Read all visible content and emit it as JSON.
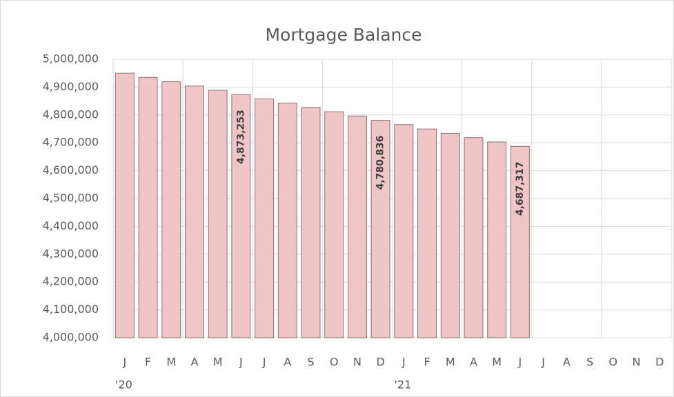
{
  "chart_data": {
    "type": "bar",
    "title": "Mortgage Balance",
    "categories": [
      "J",
      "F",
      "M",
      "A",
      "M",
      "J",
      "J",
      "A",
      "S",
      "O",
      "N",
      "D",
      "J",
      "F",
      "M",
      "A",
      "M",
      "J",
      "J",
      "A",
      "S",
      "O",
      "N",
      "D"
    ],
    "year_labels": [
      "'20",
      null,
      null,
      null,
      null,
      null,
      null,
      null,
      null,
      null,
      null,
      null,
      "'21",
      null,
      null,
      null,
      null,
      null,
      null,
      null,
      null,
      null,
      null,
      null
    ],
    "values": [
      4950000,
      4935000,
      4919500,
      4904000,
      4888700,
      4873253,
      4857900,
      4842500,
      4827100,
      4811700,
      4796300,
      4780836,
      4765300,
      4749700,
      4734100,
      4718500,
      4702900,
      4687317,
      null,
      null,
      null,
      null,
      null,
      null
    ],
    "value_labels": [
      null,
      null,
      null,
      null,
      null,
      "4,873,253",
      null,
      null,
      null,
      null,
      null,
      "4,780,836",
      null,
      null,
      null,
      null,
      null,
      "4,687,317",
      null,
      null,
      null,
      null,
      null,
      null
    ],
    "color": "#efc5c5",
    "ylim": [
      4000000,
      5000000
    ],
    "yticks": [
      {
        "value": 4000000,
        "label": "4,000,000"
      },
      {
        "value": 4100000,
        "label": "4,100,000"
      },
      {
        "value": 4200000,
        "label": "4,200,000"
      },
      {
        "value": 4300000,
        "label": "4,300,000"
      },
      {
        "value": 4400000,
        "label": "4,400,000"
      },
      {
        "value": 4500000,
        "label": "4,500,000"
      },
      {
        "value": 4600000,
        "label": "4,600,000"
      },
      {
        "value": 4700000,
        "label": "4,700,000"
      },
      {
        "value": 4800000,
        "label": "4,800,000"
      },
      {
        "value": 4900000,
        "label": "4,900,000"
      },
      {
        "value": 5000000,
        "label": "5,000,000"
      }
    ],
    "grid": true
  }
}
